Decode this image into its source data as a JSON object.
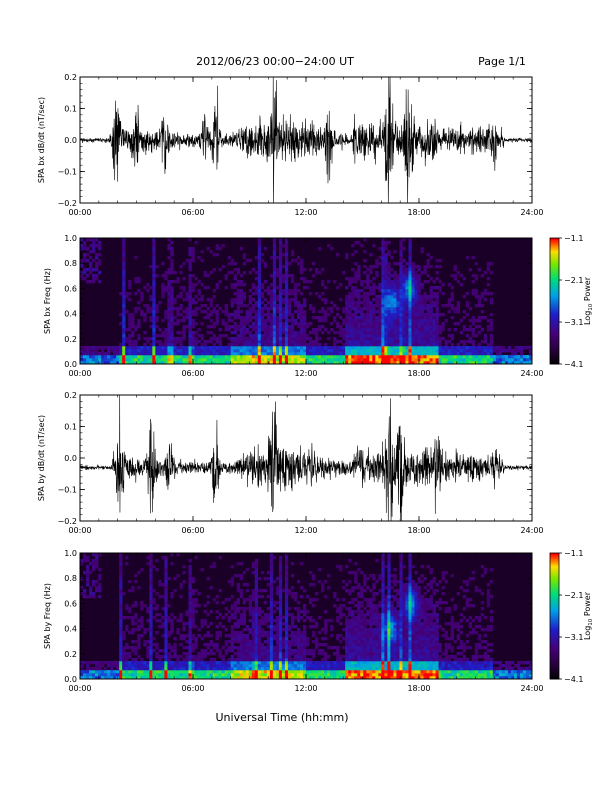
{
  "header": {
    "title": "2012/06/23  00:00−24:00 UT",
    "page": "Page 1/1"
  },
  "footer": {
    "xaxis_label": "Universal Time (hh:mm)"
  },
  "chart_data": [
    {
      "type": "line",
      "ylabel": "SPA bx dB/dt (nT/sec)",
      "xlim": [
        0,
        24
      ],
      "ylim": [
        -0.2,
        0.2
      ],
      "x_ticks": [
        "00:00",
        "06:00",
        "12:00",
        "18:00",
        "24:00"
      ],
      "y_ticks": [
        "0.2",
        "0.1",
        "0.0",
        "−0.1",
        "−0.2"
      ],
      "baseline": 0.0,
      "bursts": [
        {
          "t": 1.9,
          "amp": 0.16
        },
        {
          "t": 3.0,
          "amp": 0.08
        },
        {
          "t": 4.5,
          "amp": 0.1
        },
        {
          "t": 6.6,
          "amp": 0.08
        },
        {
          "t": 7.2,
          "amp": 0.12
        },
        {
          "t": 10.3,
          "amp": 0.2
        },
        {
          "t": 13.2,
          "amp": 0.1
        },
        {
          "t": 16.4,
          "amp": 0.2
        },
        {
          "t": 17.4,
          "amp": 0.14
        },
        {
          "t": 22.0,
          "amp": 0.05
        }
      ]
    },
    {
      "type": "heatmap",
      "ylabel": "SPA bx Freq (Hz)",
      "xlim": [
        0,
        24
      ],
      "ylim": [
        0.0,
        1.0
      ],
      "x_ticks": [
        "00:00",
        "06:00",
        "12:00",
        "18:00",
        "24:00"
      ],
      "y_ticks": [
        "1.0",
        "0.8",
        "0.6",
        "0.4",
        "0.2",
        "0.0"
      ],
      "colorbar": {
        "label": "Log",
        "label_sub": "10",
        "label_rest": " Power",
        "min": -4.1,
        "max": -1.1,
        "ticks": [
          "−1.1",
          "−2.1",
          "−3.1",
          "−4.1"
        ]
      },
      "bright_columns": [
        2.3,
        3.9,
        4.8,
        5.9,
        9.5,
        10.3,
        10.6,
        11.0,
        16.1,
        16.3,
        17.1,
        17.5
      ],
      "features": [
        {
          "t": 16.6,
          "f": 0.5,
          "note": "enhanced band"
        },
        {
          "t": 17.5,
          "f": 0.6,
          "note": "enhanced band"
        }
      ]
    },
    {
      "type": "line",
      "ylabel": "SPA by dB/dt (nT/sec)",
      "xlim": [
        0,
        24
      ],
      "ylim": [
        -0.2,
        0.2
      ],
      "x_ticks": [
        "00:00",
        "06:00",
        "12:00",
        "18:00",
        "24:00"
      ],
      "y_ticks": [
        "0.2",
        "0.1",
        "0.0",
        "−0.1",
        "−0.2"
      ],
      "baseline": -0.03,
      "bursts": [
        {
          "t": 2.1,
          "amp": 0.14
        },
        {
          "t": 3.8,
          "amp": 0.14
        },
        {
          "t": 4.7,
          "amp": 0.1
        },
        {
          "t": 7.2,
          "amp": 0.12
        },
        {
          "t": 10.3,
          "amp": 0.2
        },
        {
          "t": 16.4,
          "amp": 0.2
        },
        {
          "t": 17.0,
          "amp": 0.17
        },
        {
          "t": 19.0,
          "amp": 0.08
        },
        {
          "t": 22.0,
          "amp": 0.05
        }
      ]
    },
    {
      "type": "heatmap",
      "ylabel": "SPA by Freq (Hz)",
      "xlim": [
        0,
        24
      ],
      "ylim": [
        0.0,
        1.0
      ],
      "x_ticks": [
        "00:00",
        "06:00",
        "12:00",
        "18:00",
        "24:00"
      ],
      "y_ticks": [
        "1.0",
        "0.8",
        "0.6",
        "0.4",
        "0.2",
        "0.0"
      ],
      "colorbar": {
        "label": "Log",
        "label_sub": "10",
        "label_rest": " Power",
        "min": -4.1,
        "max": -1.1,
        "ticks": [
          "−1.1",
          "−2.1",
          "−3.1",
          "−4.1"
        ]
      },
      "bright_columns": [
        2.2,
        3.8,
        4.6,
        5.9,
        9.3,
        10.2,
        10.6,
        11.0,
        16.1,
        16.4,
        17.0,
        17.5
      ],
      "features": [
        {
          "t": 16.5,
          "f": 0.4,
          "note": "enhanced band"
        },
        {
          "t": 17.6,
          "f": 0.6,
          "note": "enhanced band"
        }
      ]
    }
  ]
}
